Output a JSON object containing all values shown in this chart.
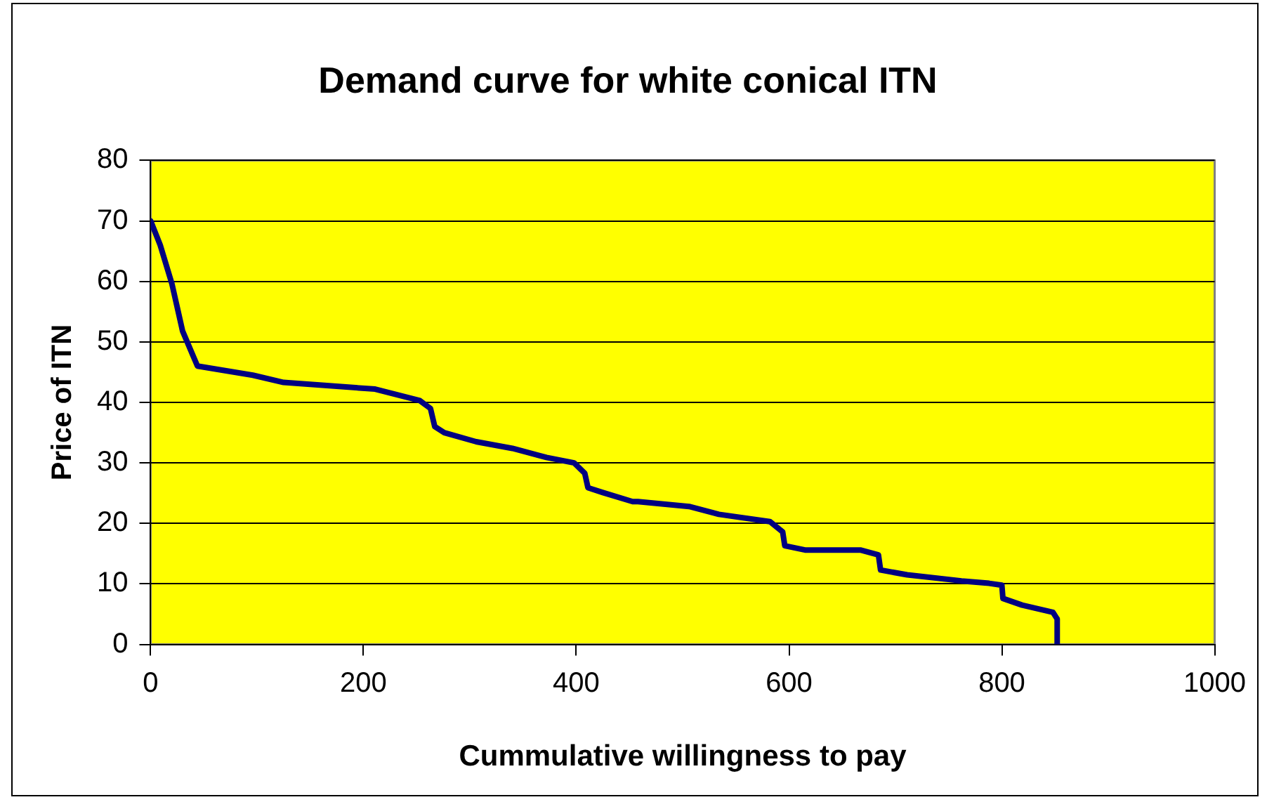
{
  "chart_data": {
    "type": "line",
    "title": "Demand curve for white conical ITN",
    "xlabel": "Cummulative willingness to pay",
    "ylabel": "Price of ITN",
    "series": [
      {
        "color": "#000080",
        "x": [
          0,
          9,
          20,
          30,
          44,
          96,
          125,
          211,
          253,
          263,
          267,
          276,
          306,
          340,
          372,
          398,
          408,
          411,
          425,
          453,
          458,
          506,
          534,
          582,
          594,
          596,
          615,
          667,
          684,
          686,
          711,
          762,
          788,
          800,
          801,
          819,
          848,
          852,
          852
        ],
        "values": [
          70,
          66,
          59.6,
          51.8,
          46,
          44.5,
          43.3,
          42.2,
          40.3,
          39,
          36,
          35,
          33.5,
          32.4,
          30.9,
          30,
          28.3,
          25.9,
          25.1,
          23.6,
          23.6,
          22.8,
          21.5,
          20.3,
          18.6,
          16.3,
          15.6,
          15.6,
          14.8,
          12.3,
          11.5,
          10.5,
          10.1,
          9.8,
          7.6,
          6.5,
          5.3,
          4.2,
          0
        ]
      }
    ],
    "xlim": [
      0,
      1000
    ],
    "xticks": [
      0,
      200,
      400,
      600,
      800,
      1000
    ],
    "ylim": [
      0,
      80
    ],
    "yticks": [
      0,
      10,
      20,
      30,
      40,
      50,
      60,
      70,
      80
    ],
    "grid": "y",
    "legend": false,
    "marker": "none",
    "line_style": "solid"
  }
}
